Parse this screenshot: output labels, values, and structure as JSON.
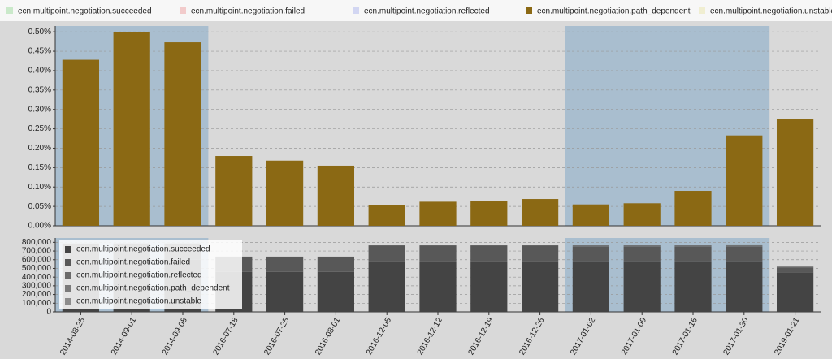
{
  "chart_data": [
    {
      "type": "bar",
      "categories": [
        "2014-08-25",
        "2014-09-01",
        "2014-09-08",
        "2016-07-18",
        "2016-07-25",
        "2016-08-01",
        "2016-12-05",
        "2016-12-12",
        "2016-12-19",
        "2016-12-26",
        "2017-01-02",
        "2017-01-09",
        "2017-01-16",
        "2017-01-30",
        "2019-01-21"
      ],
      "series": [
        {
          "name": "ecn.multipoint.negotiation.succeeded",
          "color": "#b7e2b7",
          "visible": false
        },
        {
          "name": "ecn.multipoint.negotiation.failed",
          "color": "#f0b8b8",
          "visible": false
        },
        {
          "name": "ecn.multipoint.negotiation.reflected",
          "color": "#c2c8f0",
          "visible": false
        },
        {
          "name": "ecn.multipoint.negotiation.path_dependent",
          "color": "#8b6914",
          "visible": true,
          "values": [
            0.428,
            0.5,
            0.473,
            0.18,
            0.168,
            0.155,
            0.054,
            0.062,
            0.064,
            0.069,
            0.055,
            0.058,
            0.09,
            0.233,
            0.276
          ]
        },
        {
          "name": "ecn.multipoint.negotiation.unstable",
          "color": "#ece9c0",
          "visible": false
        }
      ],
      "ylim": [
        0,
        0.515
      ],
      "yticks": [
        {
          "value": 0,
          "label": "0.00%"
        },
        {
          "value": 0.05,
          "label": "0.05%"
        },
        {
          "value": 0.1,
          "label": "0.10%"
        },
        {
          "value": 0.15,
          "label": "0.15%"
        },
        {
          "value": 0.2,
          "label": "0.20%"
        },
        {
          "value": 0.25,
          "label": "0.25%"
        },
        {
          "value": 0.3,
          "label": "0.30%"
        },
        {
          "value": 0.35,
          "label": "0.35%"
        },
        {
          "value": 0.4,
          "label": "0.40%"
        },
        {
          "value": 0.45,
          "label": "0.45%"
        },
        {
          "value": 0.5,
          "label": "0.50%"
        }
      ],
      "grid": true,
      "highlights": [
        [
          0,
          2
        ],
        [
          10,
          13
        ]
      ]
    },
    {
      "type": "stacked_bar",
      "series": [
        {
          "name": "ecn.multipoint.negotiation.succeeded",
          "color": "#444444",
          "values": [
            600000,
            600000,
            600000,
            460000,
            460000,
            460000,
            580000,
            580000,
            580000,
            580000,
            580000,
            580000,
            580000,
            580000,
            455000
          ]
        },
        {
          "name": "ecn.multipoint.negotiation.failed",
          "color": "#585858",
          "values": [
            185000,
            185000,
            185000,
            175000,
            175000,
            175000,
            185000,
            185000,
            185000,
            185000,
            170000,
            170000,
            170000,
            170000,
            55000
          ]
        },
        {
          "name": "ecn.multipoint.negotiation.reflected",
          "color": "#6a6a6a",
          "values": [
            0,
            0,
            0,
            0,
            0,
            0,
            0,
            0,
            0,
            0,
            15000,
            15000,
            15000,
            15000,
            10000
          ]
        },
        {
          "name": "ecn.multipoint.negotiation.path_dependent",
          "color": "#7a7a7a",
          "values": [
            3400,
            3900,
            3700,
            1100,
            1100,
            1000,
            400,
            500,
            500,
            500,
            400,
            400,
            700,
            1800,
            1400
          ]
        },
        {
          "name": "ecn.multipoint.negotiation.unstable",
          "color": "#8c8c8c",
          "values": [
            0,
            0,
            0,
            0,
            0,
            0,
            0,
            0,
            0,
            0,
            0,
            0,
            0,
            0,
            0
          ]
        }
      ],
      "ylim": [
        0,
        850000
      ],
      "yticks": [
        0,
        {
          "value": 100000,
          "label": "100,000"
        },
        {
          "value": 200000,
          "label": "200,000"
        },
        {
          "value": 300000,
          "label": "300,000"
        },
        {
          "value": 400000,
          "label": "400,000"
        },
        {
          "value": 500000,
          "label": "500,000"
        },
        {
          "value": 600000,
          "label": "600,000"
        },
        {
          "value": 700000,
          "label": "700,000"
        },
        {
          "value": 800000,
          "label": "800,000"
        }
      ],
      "grid": true,
      "legend": "top-left"
    }
  ]
}
